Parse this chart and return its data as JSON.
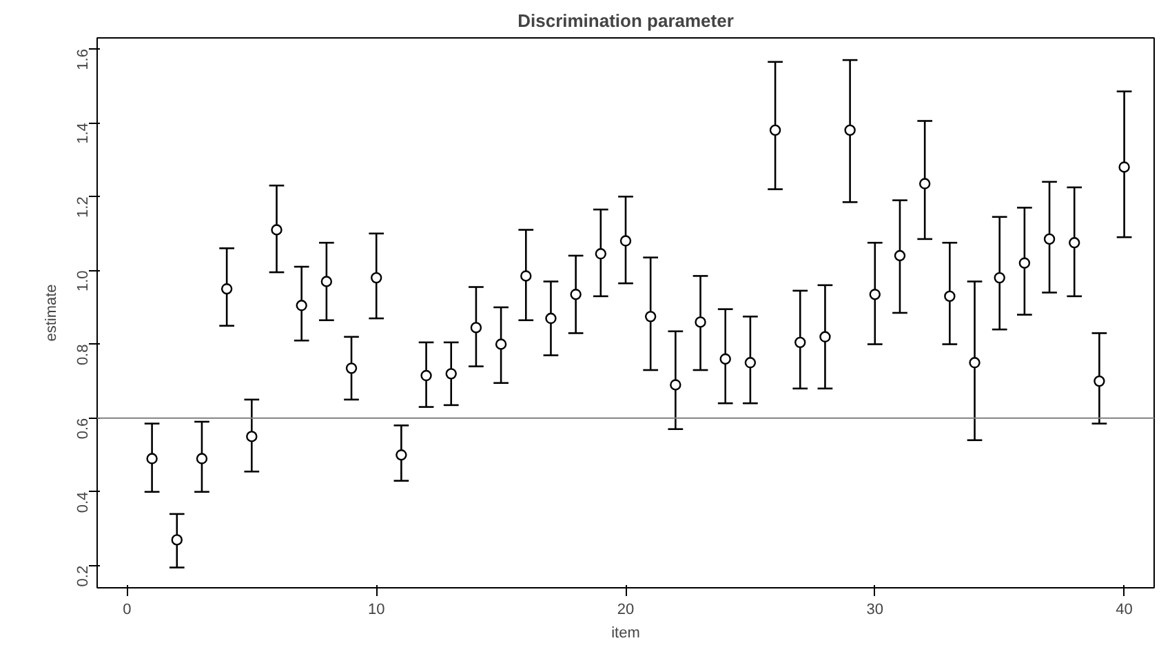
{
  "chart_data": {
    "type": "scatter",
    "title": "Discrimination parameter",
    "xlabel": "item",
    "ylabel": "estimate",
    "x": [
      1,
      2,
      3,
      4,
      5,
      6,
      7,
      8,
      9,
      10,
      11,
      12,
      13,
      14,
      15,
      16,
      17,
      18,
      19,
      20,
      21,
      22,
      23,
      24,
      25,
      26,
      27,
      28,
      29,
      30,
      31,
      32,
      33,
      34,
      35,
      36,
      37,
      38,
      39,
      40
    ],
    "values": [
      0.49,
      0.27,
      0.49,
      0.95,
      0.55,
      1.11,
      0.905,
      0.97,
      0.735,
      0.98,
      0.5,
      0.715,
      0.72,
      0.845,
      0.8,
      0.985,
      0.87,
      0.935,
      1.045,
      1.08,
      0.875,
      0.69,
      0.86,
      0.76,
      0.75,
      1.38,
      0.805,
      0.82,
      1.38,
      0.935,
      1.04,
      1.235,
      0.93,
      0.75,
      0.98,
      1.02,
      1.085,
      1.075,
      0.7,
      1.28
    ],
    "errors": [
      [
        0.4,
        0.585
      ],
      [
        0.195,
        0.34
      ],
      [
        0.4,
        0.59
      ],
      [
        0.85,
        1.06
      ],
      [
        0.455,
        0.65
      ],
      [
        0.995,
        1.23
      ],
      [
        0.81,
        1.01
      ],
      [
        0.865,
        1.075
      ],
      [
        0.65,
        0.82
      ],
      [
        0.87,
        1.1
      ],
      [
        0.43,
        0.58
      ],
      [
        0.63,
        0.805
      ],
      [
        0.635,
        0.805
      ],
      [
        0.74,
        0.955
      ],
      [
        0.695,
        0.9
      ],
      [
        0.865,
        1.11
      ],
      [
        0.77,
        0.97
      ],
      [
        0.83,
        1.04
      ],
      [
        0.93,
        1.165
      ],
      [
        0.965,
        1.2
      ],
      [
        0.73,
        1.035
      ],
      [
        0.57,
        0.835
      ],
      [
        0.73,
        0.985
      ],
      [
        0.64,
        0.895
      ],
      [
        0.64,
        0.875
      ],
      [
        1.22,
        1.565
      ],
      [
        0.68,
        0.945
      ],
      [
        0.68,
        0.96
      ],
      [
        1.185,
        1.57
      ],
      [
        0.8,
        1.075
      ],
      [
        0.885,
        1.19
      ],
      [
        1.085,
        1.405
      ],
      [
        0.8,
        1.075
      ],
      [
        0.54,
        0.97
      ],
      [
        0.84,
        1.145
      ],
      [
        0.88,
        1.17
      ],
      [
        0.94,
        1.24
      ],
      [
        0.93,
        1.225
      ],
      [
        0.585,
        0.83
      ],
      [
        1.09,
        1.485
      ]
    ],
    "color": "#000000",
    "marker": "circle",
    "xlim": [
      -1.2,
      41.2
    ],
    "ylim": [
      0.14,
      1.63
    ],
    "xticks": [
      0,
      10,
      20,
      30,
      40
    ],
    "yticks": [
      0.2,
      0.4,
      0.6,
      0.8,
      {
        "value": 1.0,
        "label": "1.0"
      },
      1.2,
      1.4,
      1.6
    ],
    "ref_lines": [
      {
        "axis": "y",
        "value": 0.6,
        "color": "#808080"
      }
    ],
    "grid": false
  }
}
